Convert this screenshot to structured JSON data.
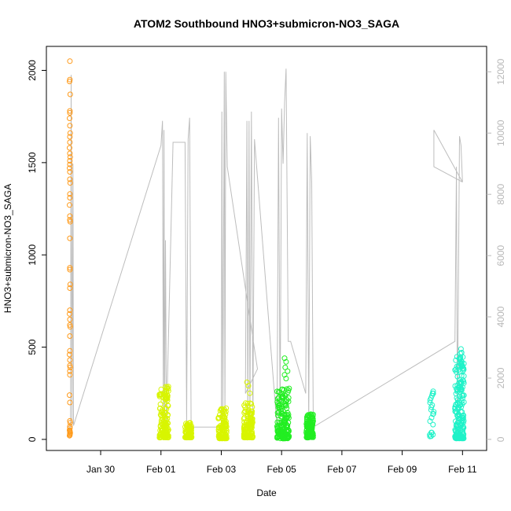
{
  "chart_data": {
    "type": "scatter",
    "title": "ATOM2 Southbound HNO3+submicron-NO3_SAGA",
    "xlabel": "Date",
    "ylabel": "HNO3+submicron-NO3_SAGA",
    "x_ticks": [
      "Jan 30",
      "Feb 01",
      "Feb 03",
      "Feb 05",
      "Feb 07",
      "Feb 09",
      "Feb 11"
    ],
    "x_tick_days": [
      30,
      32,
      34,
      36,
      38,
      40,
      42
    ],
    "xlim_days": [
      28.2,
      42.8
    ],
    "ylim": [
      -60,
      2130
    ],
    "y_ticks": [
      0,
      500,
      1000,
      1500,
      2000
    ],
    "y2_ticks": [
      0,
      2000,
      4000,
      6000,
      8000,
      10000,
      12000
    ],
    "y2lim": [
      -362,
      12830
    ],
    "grid": false,
    "point_colors": {
      "orange": "#ff9a1a",
      "yellow": "#d8f500",
      "green": "#22ee22",
      "cyan": "#1ff2c8"
    },
    "secondary_line_color": "#bdbdbd",
    "series": [
      {
        "color": "#ff9a1a",
        "points": [
          [
            28.98,
            2050
          ],
          [
            28.98,
            1950
          ],
          [
            28.97,
            1940
          ],
          [
            28.99,
            1870
          ],
          [
            28.98,
            1780
          ],
          [
            28.98,
            1770
          ],
          [
            28.97,
            1740
          ],
          [
            28.98,
            1700
          ],
          [
            28.99,
            1660
          ],
          [
            28.98,
            1640
          ],
          [
            28.98,
            1610
          ],
          [
            28.97,
            1580
          ],
          [
            28.98,
            1550
          ],
          [
            28.99,
            1530
          ],
          [
            28.98,
            1510
          ],
          [
            28.98,
            1490
          ],
          [
            28.97,
            1470
          ],
          [
            28.98,
            1450
          ],
          [
            28.98,
            1410
          ],
          [
            28.99,
            1390
          ],
          [
            28.98,
            1330
          ],
          [
            28.98,
            1310
          ],
          [
            28.97,
            1270
          ],
          [
            28.98,
            1210
          ],
          [
            28.98,
            1190
          ],
          [
            28.99,
            1180
          ],
          [
            28.98,
            1090
          ],
          [
            28.98,
            930
          ],
          [
            28.98,
            920
          ],
          [
            28.99,
            840
          ],
          [
            28.98,
            820
          ],
          [
            28.98,
            700
          ],
          [
            28.97,
            680
          ],
          [
            28.98,
            650
          ],
          [
            28.98,
            620
          ],
          [
            28.99,
            610
          ],
          [
            28.98,
            560
          ],
          [
            28.98,
            480
          ],
          [
            28.97,
            460
          ],
          [
            28.98,
            430
          ],
          [
            28.98,
            400
          ],
          [
            28.99,
            390
          ],
          [
            28.98,
            370
          ],
          [
            28.98,
            350
          ],
          [
            28.97,
            240
          ],
          [
            28.98,
            200
          ],
          [
            28.98,
            100
          ],
          [
            28.99,
            90
          ],
          [
            28.98,
            70
          ],
          [
            28.98,
            60
          ],
          [
            28.97,
            50
          ],
          [
            28.98,
            45
          ],
          [
            28.98,
            40
          ],
          [
            28.99,
            35
          ],
          [
            28.98,
            30
          ],
          [
            28.98,
            25
          ],
          [
            28.97,
            20
          ]
        ]
      },
      {
        "color": "#d8f500",
        "clusters": [
          {
            "x": [
              31.95,
              32.25
            ],
            "y": [
              10,
              290
            ],
            "n": 140,
            "top": [
              [
                32.15,
                285
              ],
              [
                32.18,
                260
              ],
              [
                32.1,
                240
              ],
              [
                32.2,
                220
              ]
            ]
          },
          {
            "x": [
              32.8,
              33.02
            ],
            "y": [
              10,
              95
            ],
            "n": 110,
            "top": []
          },
          {
            "x": [
              33.9,
              34.18
            ],
            "y": [
              5,
              170
            ],
            "n": 120,
            "top": [
              [
                34.0,
                165
              ],
              [
                34.05,
                150
              ]
            ]
          },
          {
            "x": [
              34.75,
              35.05
            ],
            "y": [
              10,
              210
            ],
            "n": 140,
            "top": [
              [
                34.85,
                310
              ],
              [
                34.9,
                290
              ],
              [
                34.95,
                250
              ]
            ]
          }
        ]
      },
      {
        "color": "#22ee22",
        "clusters": [
          {
            "x": [
              35.85,
              36.25
            ],
            "y": [
              5,
              280
            ],
            "n": 160,
            "top": [
              [
                36.1,
                440
              ],
              [
                36.15,
                420
              ],
              [
                36.12,
                390
              ],
              [
                36.2,
                370
              ],
              [
                36.1,
                350
              ],
              [
                36.15,
                330
              ]
            ]
          },
          {
            "x": [
              36.82,
              37.05
            ],
            "y": [
              10,
              140
            ],
            "n": 140,
            "top": []
          }
        ]
      },
      {
        "color": "#1ff2c8",
        "clusters": [
          {
            "x": [
              40.9,
              41.05
            ],
            "y": [
              15,
              300
            ],
            "n": 22,
            "top": []
          },
          {
            "x": [
              41.75,
              42.05
            ],
            "y": [
              5,
              490
            ],
            "n": 190,
            "top": [
              [
                41.95,
                490
              ],
              [
                41.97,
                470
              ],
              [
                41.93,
                440
              ],
              [
                41.98,
                420
              ]
            ]
          }
        ]
      }
    ],
    "secondary_line": {
      "axis": "right",
      "points_days": [
        [
          28.95,
          400
        ],
        [
          29.0,
          400
        ],
        [
          29.02,
          11900
        ],
        [
          29.05,
          400
        ],
        [
          29.08,
          9000
        ],
        [
          29.1,
          450
        ],
        [
          32.0,
          9600
        ],
        [
          32.05,
          10400
        ],
        [
          32.08,
          500
        ],
        [
          32.1,
          10100
        ],
        [
          32.12,
          400
        ],
        [
          32.15,
          6500
        ],
        [
          32.18,
          500
        ],
        [
          32.4,
          9700
        ],
        [
          32.8,
          9700
        ],
        [
          32.85,
          500
        ],
        [
          32.9,
          9800
        ],
        [
          32.95,
          10500
        ],
        [
          33.0,
          400
        ],
        [
          33.05,
          400
        ],
        [
          34.0,
          400
        ],
        [
          34.02,
          10700
        ],
        [
          34.05,
          400
        ],
        [
          34.1,
          12000
        ],
        [
          34.12,
          400
        ],
        [
          34.15,
          12000
        ],
        [
          34.2,
          8900
        ],
        [
          35.2,
          2300
        ],
        [
          34.8,
          1500
        ],
        [
          34.85,
          10400
        ],
        [
          34.88,
          500
        ],
        [
          34.92,
          10400
        ],
        [
          34.95,
          500
        ],
        [
          35.0,
          10700
        ],
        [
          35.05,
          500
        ],
        [
          35.1,
          9800
        ],
        [
          35.85,
          400
        ],
        [
          35.9,
          10500
        ],
        [
          35.95,
          500
        ],
        [
          36.0,
          10800
        ],
        [
          36.05,
          9000
        ],
        [
          36.1,
          11000
        ],
        [
          36.15,
          12100
        ],
        [
          36.22,
          3200
        ],
        [
          36.3,
          3200
        ],
        [
          36.8,
          1500
        ],
        [
          36.85,
          10000
        ],
        [
          36.9,
          400
        ],
        [
          36.95,
          9900
        ],
        [
          37.0,
          8400
        ],
        [
          37.05,
          400
        ],
        [
          41.75,
          3200
        ],
        [
          41.8,
          8900
        ],
        [
          41.83,
          400
        ],
        [
          41.9,
          9900
        ],
        [
          41.95,
          9600
        ],
        [
          42.0,
          8400
        ],
        [
          41.05,
          10100
        ],
        [
          41.05,
          8900
        ],
        [
          42.0,
          8400
        ]
      ]
    }
  }
}
